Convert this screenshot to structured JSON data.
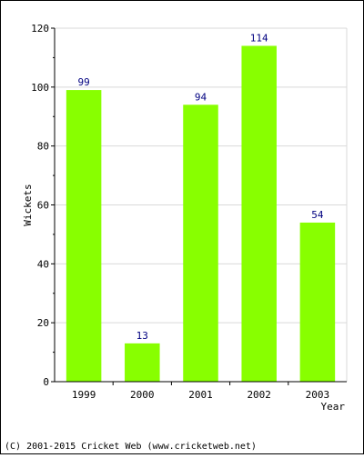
{
  "chart_data": {
    "type": "bar",
    "categories": [
      "1999",
      "2000",
      "2001",
      "2002",
      "2003"
    ],
    "values": [
      99,
      13,
      94,
      114,
      54
    ],
    "data_labels": [
      "99",
      "13",
      "94",
      "114",
      "54"
    ],
    "title": "",
    "xlabel": "Year",
    "ylabel": "Wickets",
    "ylim": [
      0,
      120
    ],
    "y_ticks": [
      0,
      20,
      40,
      60,
      80,
      100,
      120
    ],
    "y_tick_labels": [
      "0",
      "20",
      "40",
      "60",
      "80",
      "100",
      "120"
    ],
    "grid": true,
    "bar_color": "#88ff00",
    "label_color": "#000080",
    "grid_color": "#d9d9d9"
  },
  "footer": {
    "text": "(C) 2001-2015 Cricket Web (www.cricketweb.net)"
  }
}
